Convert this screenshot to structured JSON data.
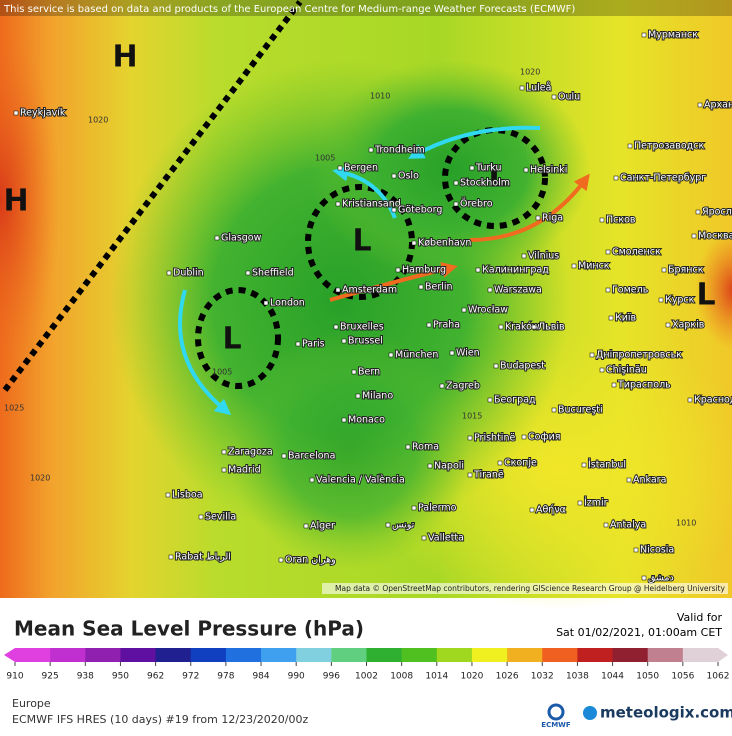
{
  "header": {
    "notice": "This service is based on data and products of the European Centre for Medium-range Weather Forecasts (ECMWF)"
  },
  "map": {
    "pressure_centers": [
      "H",
      "H",
      "L",
      "L",
      "L",
      "L"
    ],
    "cities": [
      "Reykjavík",
      "Trondheim",
      "Oslo",
      "Stockholm",
      "Turku",
      "Helsinki",
      "Bergen",
      "Kristiansand",
      "Göteborg",
      "Örebro",
      "Riga",
      "Glasgow",
      "Dublin",
      "Sheffield",
      "London",
      "København",
      "Hamburg",
      "Vilnius",
      "Минск",
      "Калининград",
      "Warszawa",
      "Berlin",
      "Amsterdam",
      "Wrocław",
      "Kraków",
      "Bruxelles",
      "Brussel",
      "Paris",
      "Praha",
      "Львів",
      "Київ",
      "München",
      "Wien",
      "Budapest",
      "Bern",
      "Chişinău",
      "Milano",
      "Zagreb",
      "Београд",
      "Bucureşti",
      "Monaco",
      "Prishtinë",
      "София",
      "Roma",
      "Скопје",
      "Zaragoza",
      "Madrid",
      "Barcelona",
      "Valencia / València",
      "Napoli",
      "Tiranë",
      "İstanbul",
      "Ankara",
      "Lisboa",
      "Sevilla",
      "Palermo",
      "Alger",
      "تونس",
      "Valletta",
      "Αθήνα",
      "İzmir",
      "Antalya",
      "Nicosia",
      "Rabat الرباط",
      "Oran وهران",
      "Мурманск",
      "Luleå",
      "Oulu",
      "Архангельск",
      "Петрозаводск",
      "Санкт-Петербург",
      "Псков",
      "Москва",
      "Смоленск",
      "Брянск",
      "Гомель",
      "Курск",
      "Харків",
      "Днiпропетровськ",
      "Тирасполь",
      "Краснодар",
      "Ярославль",
      "دمشق"
    ],
    "isobars": [
      "1010",
      "1020",
      "1025",
      "1005",
      "1015",
      "1020",
      "1020",
      "1005",
      "1010"
    ],
    "attribution": "Map data © OpenStreetMap contributors, rendering GIScience Research Group @ Heidelberg University"
  },
  "legend": {
    "title": "Mean Sea Level Pressure (hPa)",
    "valid_label": "Valid for",
    "valid_time": "Sat 01/02/2021, 01:00am CET",
    "ticks": [
      910,
      925,
      938,
      950,
      962,
      972,
      978,
      984,
      990,
      996,
      1002,
      1008,
      1014,
      1020,
      1026,
      1032,
      1038,
      1044,
      1050,
      1056,
      1062
    ],
    "colors": [
      "#e040e0",
      "#c030d0",
      "#9020b0",
      "#6010a0",
      "#202090",
      "#1040c0",
      "#2070e0",
      "#40a0f0",
      "#80d0e0",
      "#60d080",
      "#30b030",
      "#50c020",
      "#a0d820",
      "#f0f020",
      "#f0b020",
      "#f06020",
      "#c02020",
      "#902030",
      "#c08090",
      "#e0d0d8"
    ]
  },
  "footer": {
    "region": "Europe",
    "model": "ECMWF IFS HRES (10 days) #19 from 12/23/2020/00z",
    "logo": "ECMWF",
    "brand": "meteologix.com"
  }
}
